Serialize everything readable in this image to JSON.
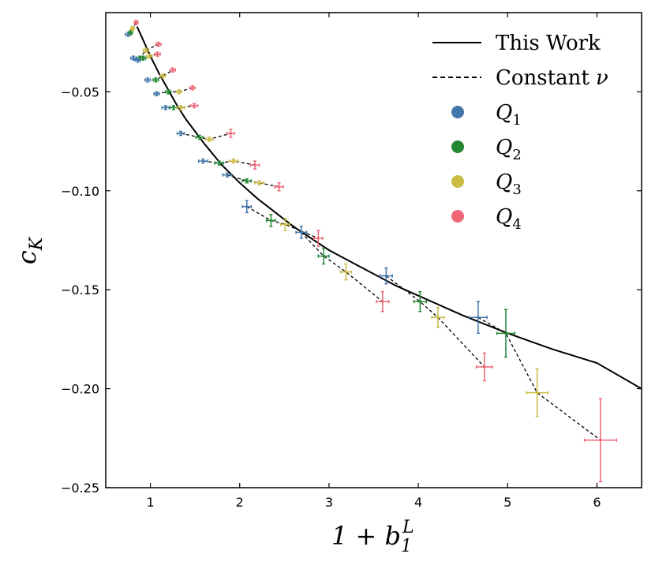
{
  "chart_data": {
    "type": "scatter",
    "xlabel": "1 + b_1^L",
    "ylabel": "c_K",
    "xlim": [
      0.5,
      6.5
    ],
    "ylim": [
      -0.25,
      -0.01
    ],
    "xticks": [
      1,
      2,
      3,
      4,
      5,
      6
    ],
    "yticks": [
      -0.05,
      -0.1,
      -0.15,
      -0.2,
      -0.25
    ],
    "xtick_labels": [
      "1",
      "2",
      "3",
      "4",
      "5",
      "6"
    ],
    "ytick_labels": [
      "−0.05",
      "−0.10",
      "−0.15",
      "−0.20",
      "−0.25"
    ],
    "grid": false,
    "legend_position": "top-right",
    "legend": [
      {
        "label": "This Work",
        "style": "solid-line"
      },
      {
        "label": "Constant ν",
        "style": "dashed-line"
      },
      {
        "label": "Q1",
        "style": "marker",
        "color": "#4477aa"
      },
      {
        "label": "Q2",
        "style": "marker",
        "color": "#228833"
      },
      {
        "label": "Q3",
        "style": "marker",
        "color": "#ccbb44"
      },
      {
        "label": "Q4",
        "style": "marker",
        "color": "#ee6677"
      }
    ],
    "colors": {
      "Q1": "#4477aa",
      "Q2": "#228833",
      "Q3": "#ccbb44",
      "Q4": "#ee6677"
    },
    "this_work_curve": {
      "x": [
        0.85,
        0.9,
        1.0,
        1.1,
        1.2,
        1.3,
        1.4,
        1.5,
        1.6,
        1.8,
        2.0,
        2.2,
        2.4,
        2.6,
        2.8,
        3.0,
        3.25,
        3.5,
        3.75,
        4.0,
        4.5,
        5.0,
        5.5,
        6.0,
        6.5
      ],
      "y": [
        -0.017,
        -0.022,
        -0.032,
        -0.041,
        -0.049,
        -0.057,
        -0.064,
        -0.07,
        -0.076,
        -0.087,
        -0.096,
        -0.104,
        -0.111,
        -0.118,
        -0.124,
        -0.13,
        -0.136,
        -0.142,
        -0.148,
        -0.153,
        -0.163,
        -0.172,
        -0.18,
        -0.187,
        -0.2
      ]
    },
    "groups": [
      {
        "points": [
          {
            "q": "Q1",
            "x": 0.75,
            "y": -0.021,
            "xerr": 0.03,
            "yerr": 0.001
          },
          {
            "q": "Q2",
            "x": 0.78,
            "y": -0.02,
            "xerr": 0.02,
            "yerr": 0.001
          },
          {
            "q": "Q3",
            "x": 0.8,
            "y": -0.018,
            "xerr": 0.02,
            "yerr": 0.001
          },
          {
            "q": "Q4",
            "x": 0.84,
            "y": -0.015,
            "xerr": 0.02,
            "yerr": 0.001
          }
        ]
      },
      {
        "points": [
          {
            "q": "Q1",
            "x": 0.81,
            "y": -0.033,
            "xerr": 0.03,
            "yerr": 0.001
          },
          {
            "q": "Q2",
            "x": 0.88,
            "y": -0.033,
            "xerr": 0.03,
            "yerr": 0.001
          },
          {
            "q": "Q3",
            "x": 0.95,
            "y": -0.029,
            "xerr": 0.03,
            "yerr": 0.001
          },
          {
            "q": "Q4",
            "x": 1.09,
            "y": -0.026,
            "xerr": 0.03,
            "yerr": 0.001
          }
        ]
      },
      {
        "points": [
          {
            "q": "Q1",
            "x": 0.86,
            "y": -0.034,
            "xerr": 0.03,
            "yerr": 0.001
          },
          {
            "q": "Q2",
            "x": 0.92,
            "y": -0.033,
            "xerr": 0.03,
            "yerr": 0.001
          },
          {
            "q": "Q3",
            "x": 0.99,
            "y": -0.032,
            "xerr": 0.03,
            "yerr": 0.001
          },
          {
            "q": "Q4",
            "x": 1.08,
            "y": -0.031,
            "xerr": 0.03,
            "yerr": 0.001
          }
        ]
      },
      {
        "points": [
          {
            "q": "Q1",
            "x": 0.97,
            "y": -0.044,
            "xerr": 0.03,
            "yerr": 0.001
          },
          {
            "q": "Q2",
            "x": 1.06,
            "y": -0.044,
            "xerr": 0.03,
            "yerr": 0.001
          },
          {
            "q": "Q3",
            "x": 1.14,
            "y": -0.042,
            "xerr": 0.03,
            "yerr": 0.001
          },
          {
            "q": "Q4",
            "x": 1.25,
            "y": -0.039,
            "xerr": 0.03,
            "yerr": 0.001
          }
        ]
      },
      {
        "points": [
          {
            "q": "Q1",
            "x": 1.07,
            "y": -0.051,
            "xerr": 0.03,
            "yerr": 0.001
          },
          {
            "q": "Q2",
            "x": 1.2,
            "y": -0.05,
            "xerr": 0.03,
            "yerr": 0.001
          },
          {
            "q": "Q3",
            "x": 1.32,
            "y": -0.05,
            "xerr": 0.03,
            "yerr": 0.001
          },
          {
            "q": "Q4",
            "x": 1.47,
            "y": -0.048,
            "xerr": 0.03,
            "yerr": 0.001
          }
        ]
      },
      {
        "points": [
          {
            "q": "Q1",
            "x": 1.17,
            "y": -0.058,
            "xerr": 0.04,
            "yerr": 0.001
          },
          {
            "q": "Q2",
            "x": 1.26,
            "y": -0.058,
            "xerr": 0.04,
            "yerr": 0.001
          },
          {
            "q": "Q3",
            "x": 1.34,
            "y": -0.058,
            "xerr": 0.04,
            "yerr": 0.001
          },
          {
            "q": "Q4",
            "x": 1.49,
            "y": -0.057,
            "xerr": 0.04,
            "yerr": 0.001
          }
        ]
      },
      {
        "points": [
          {
            "q": "Q1",
            "x": 1.34,
            "y": -0.071,
            "xerr": 0.04,
            "yerr": 0.001
          },
          {
            "q": "Q2",
            "x": 1.55,
            "y": -0.073,
            "xerr": 0.04,
            "yerr": 0.001
          },
          {
            "q": "Q3",
            "x": 1.66,
            "y": -0.074,
            "xerr": 0.04,
            "yerr": 0.001
          },
          {
            "q": "Q4",
            "x": 1.9,
            "y": -0.071,
            "xerr": 0.04,
            "yerr": 0.002
          }
        ]
      },
      {
        "points": [
          {
            "q": "Q1",
            "x": 1.59,
            "y": -0.085,
            "xerr": 0.05,
            "yerr": 0.001
          },
          {
            "q": "Q2",
            "x": 1.77,
            "y": -0.086,
            "xerr": 0.05,
            "yerr": 0.001
          },
          {
            "q": "Q3",
            "x": 1.93,
            "y": -0.085,
            "xerr": 0.05,
            "yerr": 0.001
          },
          {
            "q": "Q4",
            "x": 2.17,
            "y": -0.087,
            "xerr": 0.05,
            "yerr": 0.002
          }
        ]
      },
      {
        "points": [
          {
            "q": "Q1",
            "x": 1.86,
            "y": -0.092,
            "xerr": 0.05,
            "yerr": 0.001
          },
          {
            "q": "Q2",
            "x": 2.08,
            "y": -0.095,
            "xerr": 0.05,
            "yerr": 0.001
          },
          {
            "q": "Q3",
            "x": 2.22,
            "y": -0.096,
            "xerr": 0.05,
            "yerr": 0.001
          },
          {
            "q": "Q4",
            "x": 2.44,
            "y": -0.098,
            "xerr": 0.05,
            "yerr": 0.002
          }
        ]
      },
      {
        "points": [
          {
            "q": "Q1",
            "x": 2.08,
            "y": -0.108,
            "xerr": 0.05,
            "yerr": 0.003
          },
          {
            "q": "Q2",
            "x": 2.35,
            "y": -0.115,
            "xerr": 0.05,
            "yerr": 0.003
          },
          {
            "q": "Q3",
            "x": 2.51,
            "y": -0.117,
            "xerr": 0.05,
            "yerr": 0.003
          },
          {
            "q": "Q4",
            "x": 2.88,
            "y": -0.124,
            "xerr": 0.05,
            "yerr": 0.004
          }
        ]
      },
      {
        "points": [
          {
            "q": "Q1",
            "x": 2.69,
            "y": -0.121,
            "xerr": 0.06,
            "yerr": 0.003
          },
          {
            "q": "Q2",
            "x": 2.94,
            "y": -0.133,
            "xerr": 0.06,
            "yerr": 0.004
          },
          {
            "q": "Q3",
            "x": 3.19,
            "y": -0.141,
            "xerr": 0.06,
            "yerr": 0.004
          },
          {
            "q": "Q4",
            "x": 3.6,
            "y": -0.156,
            "xerr": 0.07,
            "yerr": 0.005
          }
        ]
      },
      {
        "points": [
          {
            "q": "Q1",
            "x": 3.64,
            "y": -0.143,
            "xerr": 0.07,
            "yerr": 0.004
          },
          {
            "q": "Q2",
            "x": 4.02,
            "y": -0.156,
            "xerr": 0.07,
            "yerr": 0.005
          },
          {
            "q": "Q3",
            "x": 4.22,
            "y": -0.164,
            "xerr": 0.07,
            "yerr": 0.005
          },
          {
            "q": "Q4",
            "x": 4.74,
            "y": -0.189,
            "xerr": 0.09,
            "yerr": 0.007
          }
        ]
      },
      {
        "points": [
          {
            "q": "Q1",
            "x": 4.67,
            "y": -0.164,
            "xerr": 0.1,
            "yerr": 0.008
          },
          {
            "q": "Q2",
            "x": 4.98,
            "y": -0.172,
            "xerr": 0.1,
            "yerr": 0.012
          },
          {
            "q": "Q3",
            "x": 5.33,
            "y": -0.202,
            "xerr": 0.12,
            "yerr": 0.012
          },
          {
            "q": "Q4",
            "x": 6.04,
            "y": -0.226,
            "xerr": 0.18,
            "yerr": 0.021
          }
        ]
      }
    ]
  }
}
